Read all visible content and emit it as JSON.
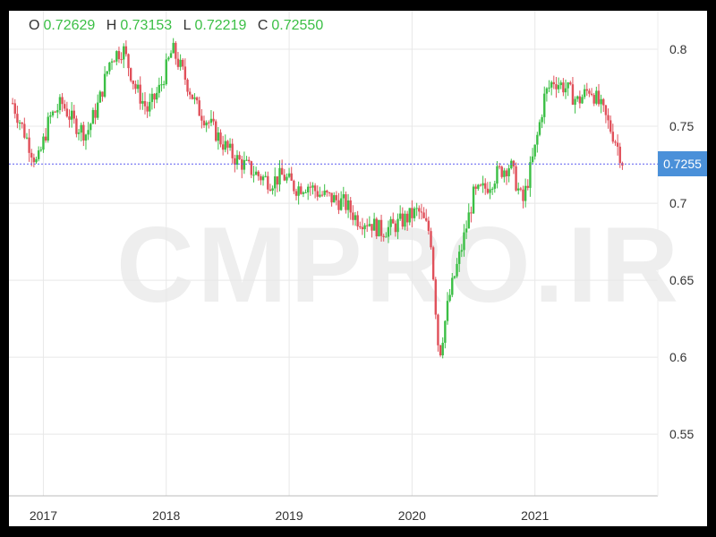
{
  "ohlc": {
    "o_label": "O",
    "o_value": "0.72629",
    "h_label": "H",
    "h_value": "0.73153",
    "l_label": "L",
    "l_value": "0.72219",
    "c_label": "C",
    "c_value": "0.72550"
  },
  "watermark": "CMPRO.IR",
  "current_price_label": "0.7255",
  "colors": {
    "up": "#3bbf45",
    "down": "#e0505a",
    "price_line": "#5b5bf0",
    "badge": "#4a90d9",
    "grid": "#e8e8e8"
  },
  "chart_data": {
    "type": "candlestick",
    "title": "",
    "xlabel": "",
    "ylabel": "",
    "x_ticks": [
      "2017",
      "2018",
      "2019",
      "2020",
      "2021"
    ],
    "y_ticks": [
      "0.8",
      "0.75",
      "0.7",
      "0.65",
      "0.6",
      "0.55"
    ],
    "ylim": [
      0.51,
      0.825
    ],
    "xlim": [
      2016.72,
      2022.0
    ],
    "current_price": 0.7255,
    "grid": true,
    "series": [
      {
        "x": [
          2016.75,
          2016.85,
          2016.95,
          2017.05,
          2017.15,
          2017.25,
          2017.35,
          2017.45,
          2017.55,
          2017.65,
          2017.75,
          2017.85,
          2017.95,
          2018.05,
          2018.15,
          2018.25,
          2018.35,
          2018.45,
          2018.55,
          2018.65,
          2018.75,
          2018.85,
          2018.95,
          2019.05,
          2019.15,
          2019.25,
          2019.35,
          2019.45,
          2019.55,
          2019.65,
          2019.75,
          2019.85,
          2019.95,
          2020.05,
          2020.15,
          2020.22,
          2020.3,
          2020.4,
          2020.5,
          2020.6,
          2020.7,
          2020.8,
          2020.9,
          2021.0,
          2021.08,
          2021.15,
          2021.25,
          2021.35,
          2021.45,
          2021.55,
          2021.65,
          2021.72
        ],
        "values": [
          0.765,
          0.745,
          0.725,
          0.755,
          0.765,
          0.752,
          0.745,
          0.765,
          0.795,
          0.8,
          0.775,
          0.76,
          0.775,
          0.8,
          0.782,
          0.762,
          0.752,
          0.74,
          0.73,
          0.724,
          0.718,
          0.714,
          0.718,
          0.71,
          0.712,
          0.706,
          0.703,
          0.7,
          0.69,
          0.688,
          0.682,
          0.685,
          0.69,
          0.695,
          0.68,
          0.6,
          0.638,
          0.67,
          0.705,
          0.71,
          0.72,
          0.725,
          0.7,
          0.735,
          0.77,
          0.78,
          0.775,
          0.766,
          0.775,
          0.76,
          0.742,
          0.7255
        ]
      }
    ]
  }
}
